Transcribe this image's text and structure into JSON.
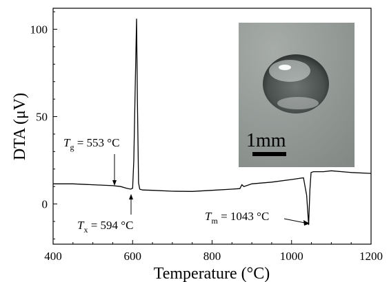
{
  "chart_data": {
    "type": "line",
    "xlabel": "Temperature (°C)",
    "ylabel": "DTA (μV)",
    "xlim": [
      400,
      1200
    ],
    "ylim": [
      -23,
      112
    ],
    "x_ticks": [
      400,
      600,
      800,
      1000,
      1200
    ],
    "y_ticks": [
      0,
      50,
      100
    ],
    "grid": false,
    "series": [
      {
        "x": [
          400,
          450,
          500,
          550,
          570,
          585,
          595,
          600,
          603,
          606,
          610,
          612,
          615,
          618,
          625,
          650,
          700,
          750,
          800,
          850,
          870,
          875,
          880,
          900,
          950,
          1000,
          1030,
          1038,
          1043,
          1046,
          1049,
          1055,
          1080,
          1100,
          1150,
          1200
        ],
        "y": [
          11.5,
          11.5,
          11,
          10.5,
          10,
          9,
          8.5,
          9,
          25,
          60,
          106,
          60,
          12,
          8.5,
          8,
          7.8,
          7.3,
          7.2,
          7.8,
          8.5,
          8.8,
          11,
          10,
          11.5,
          12.5,
          14,
          15,
          5,
          -12,
          8,
          18,
          18.5,
          18.5,
          19,
          18,
          17.5
        ]
      }
    ],
    "annotations": [
      {
        "symbol": "T",
        "subscript": "g",
        "text": " = 553 °C",
        "x": 553
      },
      {
        "symbol": "T",
        "subscript": "x",
        "text": " = 594 °C",
        "x": 594
      },
      {
        "symbol": "T",
        "subscript": "m",
        "text": " = 1043 °C",
        "x": 1043
      }
    ]
  },
  "inset": {
    "scale_label": "1mm",
    "colors": {
      "background": "#8e9591",
      "sphere": "#3c4240",
      "highlight": "#f3f5f4"
    }
  }
}
